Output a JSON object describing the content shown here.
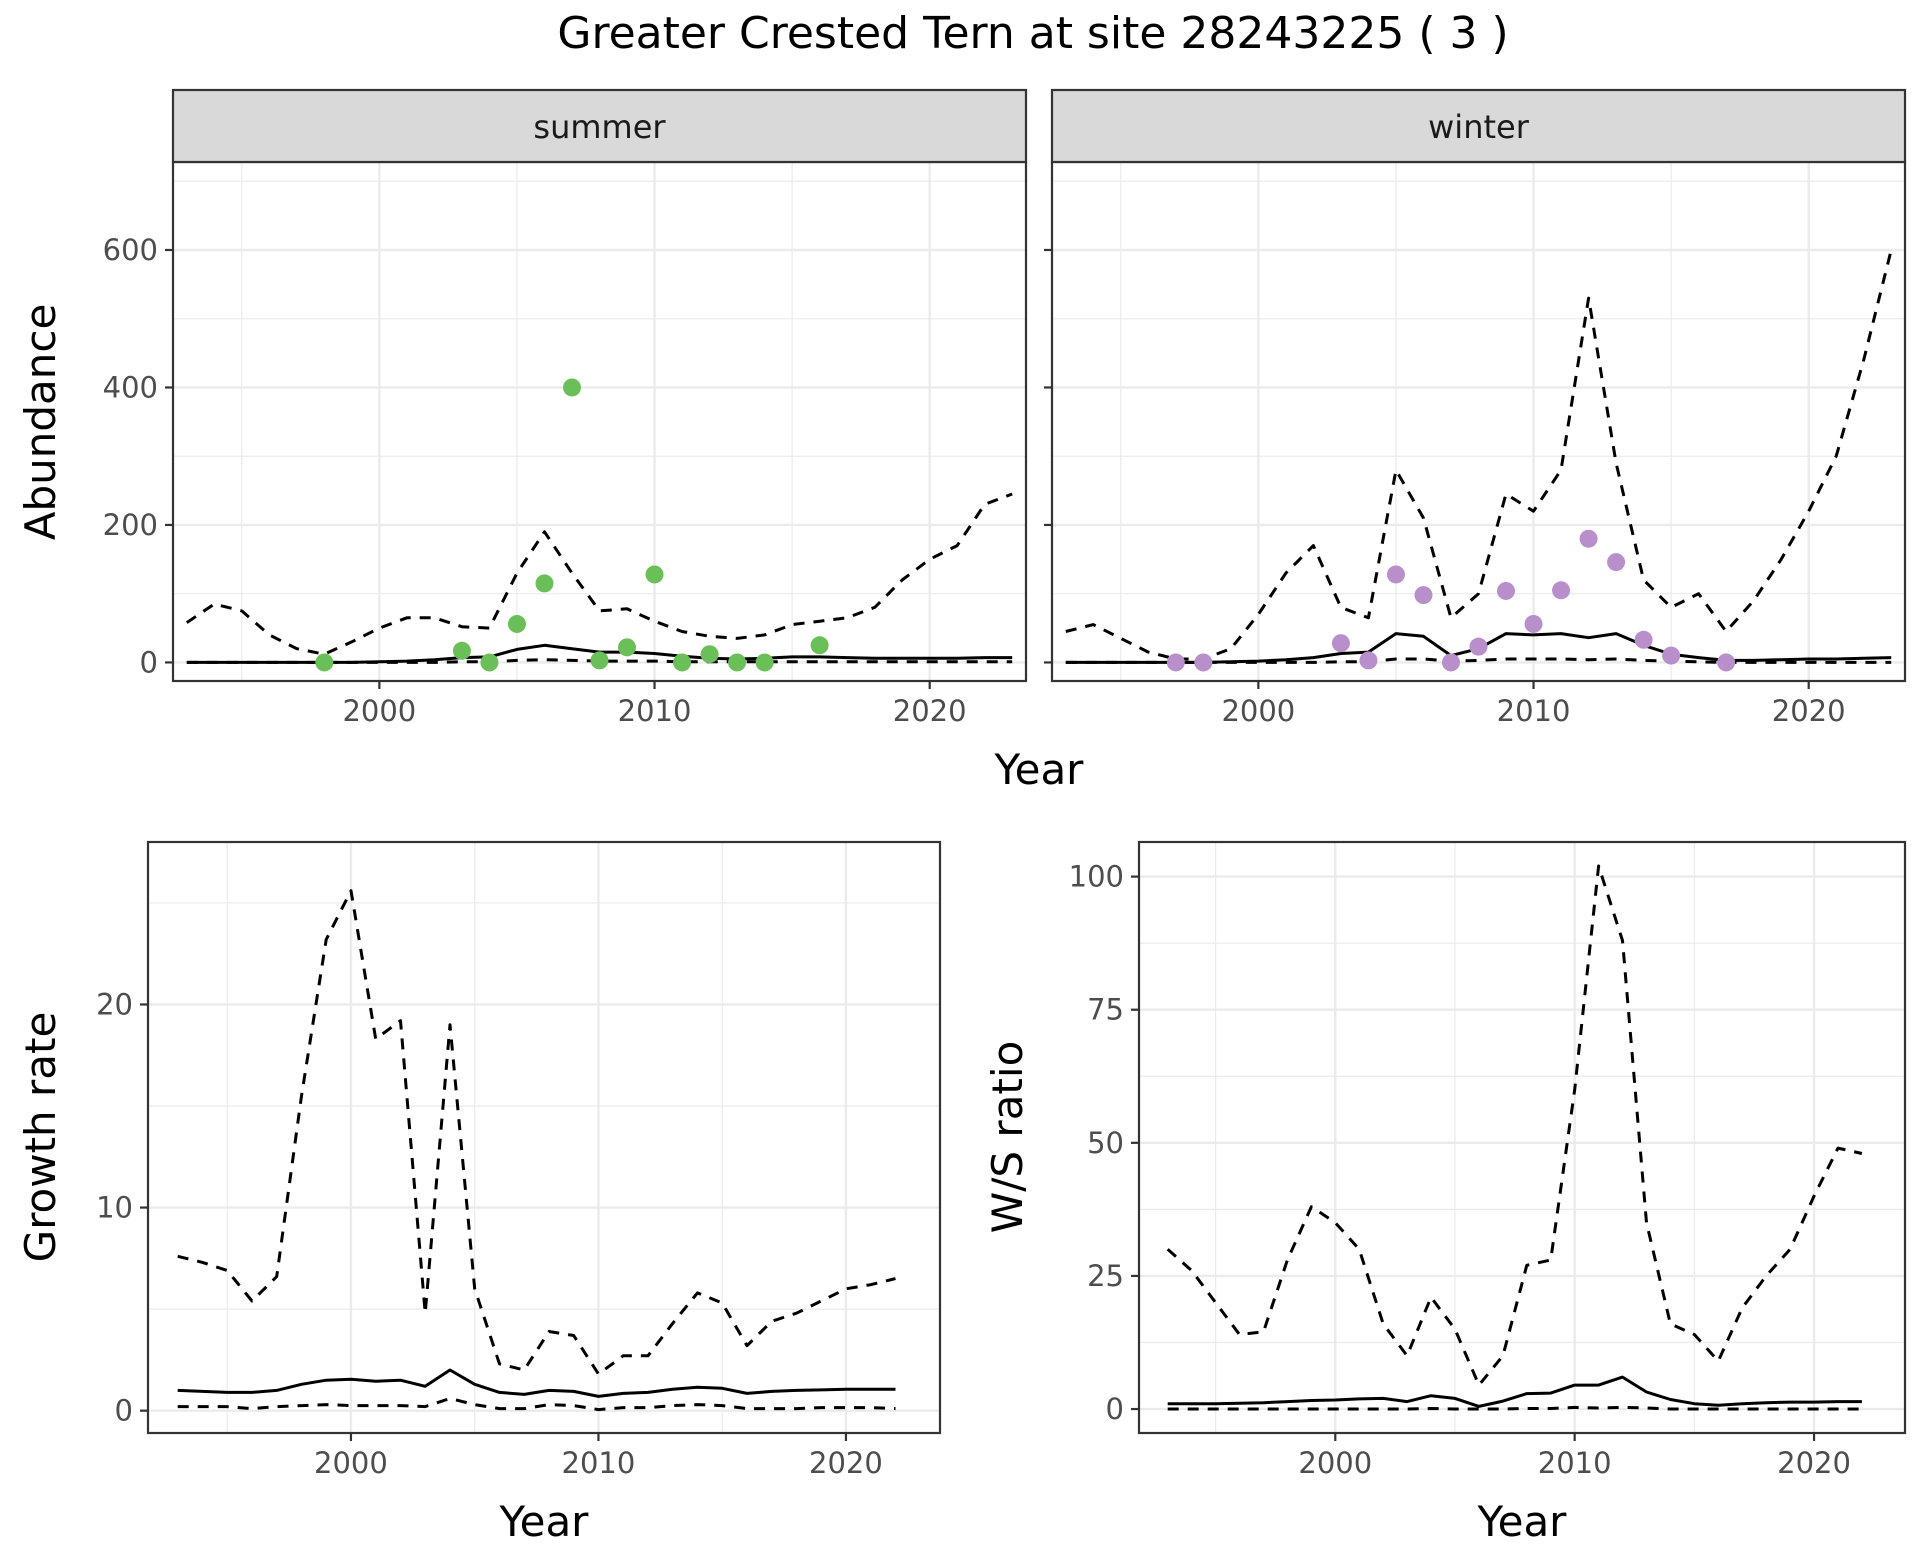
{
  "title": "Greater Crested Tern at site 28243225 ( 3 )",
  "colors": {
    "summer_points": "#6abf59",
    "winter_points": "#b98fcb",
    "lines": "#000000",
    "strip": "#d9d9d9",
    "grid": "#ebebeb"
  },
  "chart_data": [
    {
      "id": "summer",
      "type": "line",
      "strip": "summer",
      "ylabel": "Abundance",
      "xlabel": "",
      "xlim": [
        1992.5,
        2023.5
      ],
      "ylim": [
        -27,
        728
      ],
      "xticks": [
        2000,
        2010,
        2020
      ],
      "yticks": [
        0,
        200,
        400,
        600
      ],
      "grid": true,
      "x": [
        1993,
        1994,
        1995,
        1996,
        1997,
        1998,
        1999,
        2000,
        2001,
        2002,
        2003,
        2004,
        2005,
        2006,
        2007,
        2008,
        2009,
        2010,
        2011,
        2012,
        2013,
        2014,
        2015,
        2016,
        2017,
        2018,
        2019,
        2020,
        2021,
        2022,
        2023
      ],
      "estimate": [
        0,
        0,
        0,
        0,
        0,
        0,
        0,
        1,
        2,
        4,
        7,
        8,
        19,
        25,
        20,
        15,
        15,
        13,
        9,
        6,
        5,
        6,
        8,
        8,
        7,
        6,
        6,
        6,
        6,
        7,
        7
      ],
      "lower": [
        0,
        0,
        0,
        0,
        0,
        0,
        0,
        0,
        0,
        0,
        1,
        1,
        3,
        4,
        3,
        2,
        2,
        2,
        1,
        1,
        1,
        1,
        1,
        1,
        1,
        1,
        1,
        1,
        1,
        1,
        1
      ],
      "upper": [
        58,
        85,
        75,
        40,
        20,
        12,
        30,
        50,
        65,
        65,
        52,
        50,
        130,
        190,
        130,
        75,
        78,
        60,
        45,
        38,
        35,
        40,
        55,
        60,
        65,
        80,
        120,
        150,
        170,
        230,
        245
      ],
      "points": [
        {
          "x": 1998,
          "y": 0
        },
        {
          "x": 2003,
          "y": 17
        },
        {
          "x": 2004,
          "y": 0
        },
        {
          "x": 2005,
          "y": 56
        },
        {
          "x": 2006,
          "y": 115
        },
        {
          "x": 2007,
          "y": 400
        },
        {
          "x": 2008,
          "y": 3
        },
        {
          "x": 2009,
          "y": 22
        },
        {
          "x": 2010,
          "y": 128
        },
        {
          "x": 2011,
          "y": 0
        },
        {
          "x": 2012,
          "y": 12
        },
        {
          "x": 2013,
          "y": 0
        },
        {
          "x": 2014,
          "y": 0
        },
        {
          "x": 2016,
          "y": 25
        }
      ]
    },
    {
      "id": "winter",
      "type": "line",
      "strip": "winter",
      "ylabel": "",
      "xlabel": "",
      "xlim": [
        1992.5,
        2023.5
      ],
      "ylim": [
        -27,
        728
      ],
      "xticks": [
        2000,
        2010,
        2020
      ],
      "yticks": [
        0,
        200,
        400,
        600
      ],
      "grid": true,
      "x": [
        1993,
        1994,
        1995,
        1996,
        1997,
        1998,
        1999,
        2000,
        2001,
        2002,
        2003,
        2004,
        2005,
        2006,
        2007,
        2008,
        2009,
        2010,
        2011,
        2012,
        2013,
        2014,
        2015,
        2016,
        2017,
        2018,
        2019,
        2020,
        2021,
        2022,
        2023
      ],
      "estimate": [
        0,
        0,
        0,
        0,
        0,
        0,
        1,
        2,
        4,
        7,
        13,
        15,
        42,
        38,
        10,
        20,
        42,
        40,
        42,
        36,
        42,
        25,
        12,
        7,
        3,
        3,
        4,
        5,
        5,
        6,
        7
      ],
      "lower": [
        0,
        0,
        0,
        0,
        0,
        0,
        0,
        0,
        0,
        0,
        1,
        1,
        5,
        5,
        2,
        3,
        5,
        5,
        5,
        4,
        5,
        3,
        2,
        1,
        0,
        0,
        0,
        0,
        0,
        0,
        0
      ],
      "upper": [
        45,
        55,
        35,
        15,
        5,
        5,
        20,
        70,
        130,
        170,
        80,
        65,
        280,
        210,
        65,
        100,
        245,
        220,
        280,
        530,
        290,
        120,
        80,
        100,
        45,
        90,
        150,
        220,
        300,
        440,
        600
      ],
      "points": [
        {
          "x": 1997,
          "y": 0
        },
        {
          "x": 1998,
          "y": 0
        },
        {
          "x": 2003,
          "y": 28
        },
        {
          "x": 2004,
          "y": 3
        },
        {
          "x": 2005,
          "y": 128
        },
        {
          "x": 2006,
          "y": 98
        },
        {
          "x": 2007,
          "y": 0
        },
        {
          "x": 2008,
          "y": 23
        },
        {
          "x": 2009,
          "y": 104
        },
        {
          "x": 2010,
          "y": 56
        },
        {
          "x": 2011,
          "y": 105
        },
        {
          "x": 2012,
          "y": 180
        },
        {
          "x": 2013,
          "y": 146
        },
        {
          "x": 2014,
          "y": 33
        },
        {
          "x": 2015,
          "y": 10
        },
        {
          "x": 2017,
          "y": 0
        }
      ]
    },
    {
      "id": "growth",
      "type": "line",
      "ylabel": "Growth rate",
      "xlabel": "Year",
      "xlim": [
        1991.8,
        2023.8
      ],
      "ylim": [
        -1.1,
        28.0
      ],
      "xticks": [
        2000,
        2010,
        2020
      ],
      "yticks": [
        0,
        10,
        20
      ],
      "grid": true,
      "x": [
        1993,
        1994,
        1995,
        1996,
        1997,
        1998,
        1999,
        2000,
        2001,
        2002,
        2003,
        2004,
        2005,
        2006,
        2007,
        2008,
        2009,
        2010,
        2011,
        2012,
        2013,
        2014,
        2015,
        2016,
        2017,
        2018,
        2019,
        2020,
        2021,
        2022
      ],
      "estimate": [
        1.0,
        0.95,
        0.9,
        0.9,
        1.0,
        1.3,
        1.5,
        1.55,
        1.45,
        1.5,
        1.2,
        2.0,
        1.3,
        0.9,
        0.8,
        1.0,
        0.95,
        0.7,
        0.85,
        0.9,
        1.05,
        1.15,
        1.1,
        0.85,
        0.95,
        1.0,
        1.02,
        1.05,
        1.05,
        1.05
      ],
      "lower": [
        0.2,
        0.2,
        0.2,
        0.1,
        0.2,
        0.25,
        0.3,
        0.25,
        0.25,
        0.25,
        0.2,
        0.6,
        0.3,
        0.1,
        0.1,
        0.3,
        0.25,
        0.05,
        0.15,
        0.15,
        0.25,
        0.3,
        0.25,
        0.1,
        0.1,
        0.1,
        0.15,
        0.15,
        0.15,
        0.1
      ],
      "upper": [
        7.6,
        7.3,
        6.9,
        5.4,
        6.6,
        15.5,
        23.2,
        25.6,
        18.3,
        19.2,
        4.8,
        19.0,
        6.0,
        2.3,
        2.0,
        3.9,
        3.7,
        1.8,
        2.7,
        2.7,
        4.3,
        5.8,
        5.3,
        3.2,
        4.4,
        4.8,
        5.4,
        6.0,
        6.2,
        6.5
      ]
    },
    {
      "id": "ratio",
      "type": "line",
      "ylabel": "W/S ratio",
      "xlabel": "Year",
      "xlim": [
        1991.8,
        2023.8
      ],
      "ylim": [
        -4.5,
        106.5
      ],
      "xticks": [
        2000,
        2010,
        2020
      ],
      "yticks": [
        0,
        25,
        50,
        75,
        100
      ],
      "grid": true,
      "x": [
        1993,
        1994,
        1995,
        1996,
        1997,
        1998,
        1999,
        2000,
        2001,
        2002,
        2003,
        2004,
        2005,
        2006,
        2007,
        2008,
        2009,
        2010,
        2011,
        2012,
        2013,
        2014,
        2015,
        2016,
        2017,
        2018,
        2019,
        2020,
        2021,
        2022
      ],
      "estimate": [
        1.0,
        1.0,
        1.0,
        1.1,
        1.2,
        1.4,
        1.6,
        1.7,
        1.9,
        2.0,
        1.4,
        2.5,
        2.0,
        0.5,
        1.5,
        2.9,
        3.0,
        4.5,
        4.5,
        6.0,
        3.2,
        1.8,
        1.0,
        0.7,
        1.0,
        1.2,
        1.3,
        1.3,
        1.4,
        1.4
      ],
      "lower": [
        0,
        0,
        0,
        0,
        0,
        0,
        0,
        0,
        0,
        0,
        0,
        0.1,
        0,
        0,
        0,
        0.1,
        0.1,
        0.3,
        0.2,
        0.3,
        0.2,
        0,
        0,
        0,
        0,
        0,
        0,
        0,
        0,
        0
      ],
      "upper": [
        30,
        26,
        20,
        14,
        14.5,
        28,
        38,
        35,
        30,
        16,
        10,
        21,
        15,
        4.5,
        10,
        27,
        28,
        60,
        102,
        88,
        35,
        16,
        14,
        9,
        19,
        25,
        30,
        40,
        49,
        48
      ]
    }
  ]
}
